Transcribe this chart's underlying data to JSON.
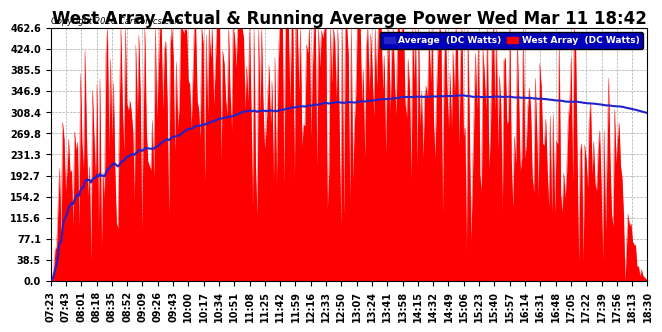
{
  "title": "West Array Actual & Running Average Power Wed Mar 11 18:42",
  "copyright": "Copyright 2020 Cartronics.com",
  "legend_avg": "Average  (DC Watts)",
  "legend_west": "West Array  (DC Watts)",
  "ymin": 0.0,
  "ymax": 462.6,
  "yticks": [
    0.0,
    38.5,
    77.1,
    115.6,
    154.2,
    192.7,
    231.3,
    269.8,
    308.4,
    346.9,
    385.5,
    424.0,
    462.6
  ],
  "bar_color": "#FF0000",
  "avg_color": "#2222CC",
  "background_color": "#FFFFFF",
  "grid_color": "#AAAAAA",
  "title_fontsize": 12,
  "label_fontsize": 7,
  "x_labels": [
    "07:23",
    "07:43",
    "08:01",
    "08:18",
    "08:35",
    "08:52",
    "09:09",
    "09:26",
    "09:43",
    "10:00",
    "10:17",
    "10:34",
    "10:51",
    "11:08",
    "11:25",
    "11:42",
    "11:59",
    "12:16",
    "12:33",
    "12:50",
    "13:07",
    "13:24",
    "13:41",
    "13:58",
    "14:15",
    "14:32",
    "14:49",
    "15:06",
    "15:23",
    "15:40",
    "15:57",
    "16:14",
    "16:31",
    "16:48",
    "17:05",
    "17:22",
    "17:39",
    "17:56",
    "18:13",
    "18:30"
  ],
  "n_points": 400
}
